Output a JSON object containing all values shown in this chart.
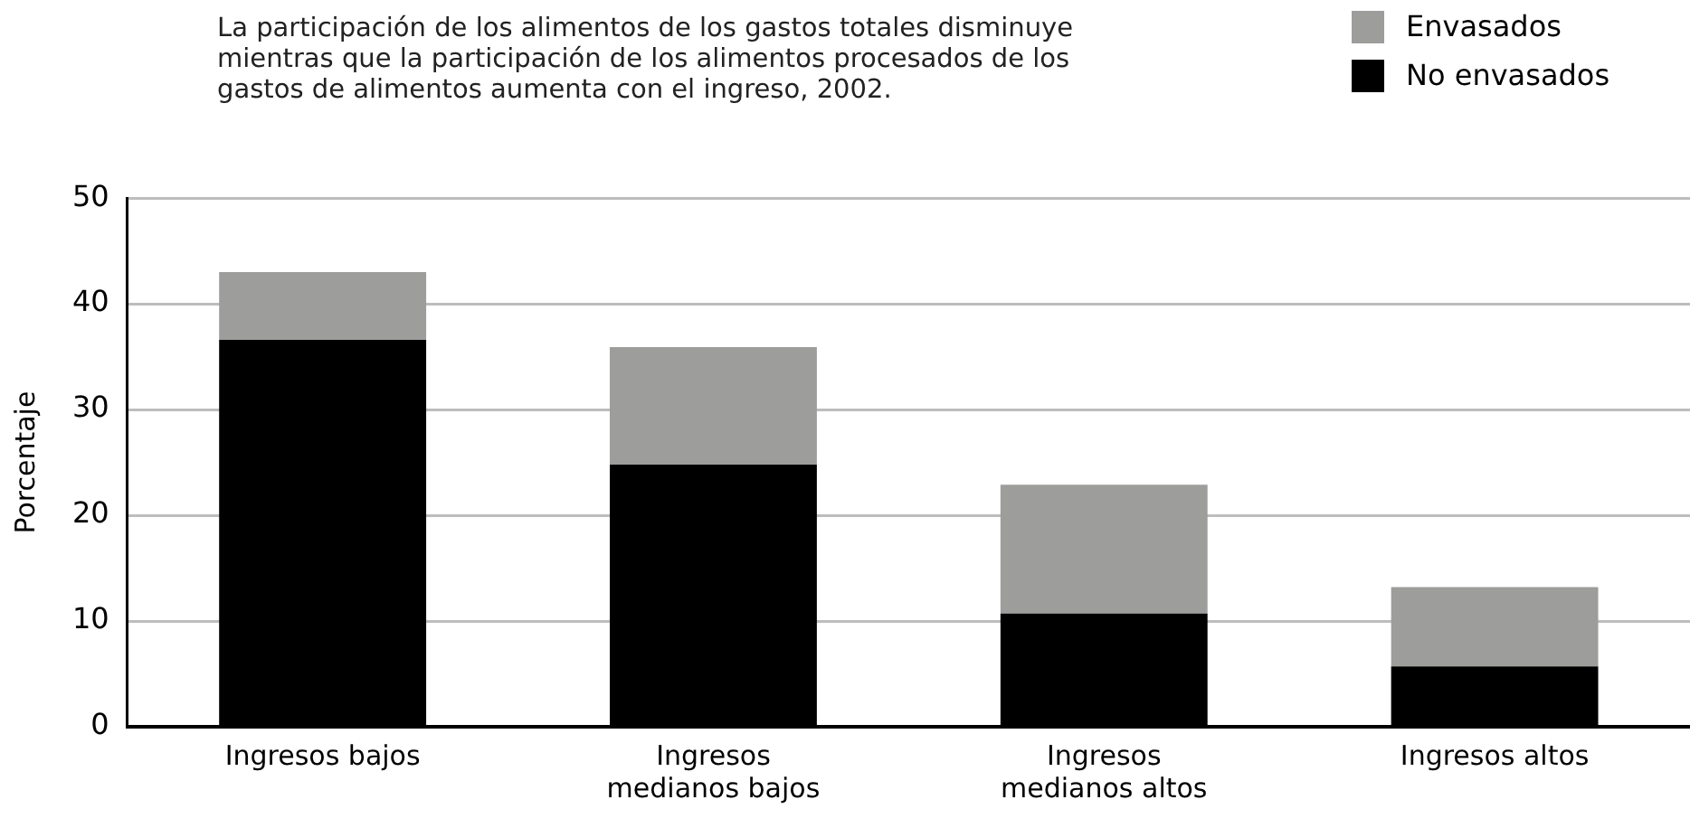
{
  "chart_data": {
    "type": "bar",
    "title": "La participación de los alimentos de los gastos totales disminuye mientras que la participación de los alimentos procesados de los gastos de alimentos aumenta con el ingreso, 2002.",
    "ylabel": "Porcentaje",
    "categories": [
      "Ingresos bajos",
      "Ingresos\nmedianos bajos",
      "Ingresos\nmedianos altos",
      "Ingresos altos"
    ],
    "series": [
      {
        "name": "No envasados",
        "color": "#000000",
        "values": [
          36.6,
          24.8,
          10.7,
          5.7
        ]
      },
      {
        "name": "Envasados",
        "color": "#9d9d9b",
        "values": [
          6.4,
          11.1,
          12.2,
          7.5
        ]
      }
    ],
    "stacked": true,
    "ylim": [
      0,
      50
    ],
    "yticks": [
      0,
      10,
      20,
      30,
      40,
      50
    ],
    "grid": "y",
    "legend": "top right"
  }
}
